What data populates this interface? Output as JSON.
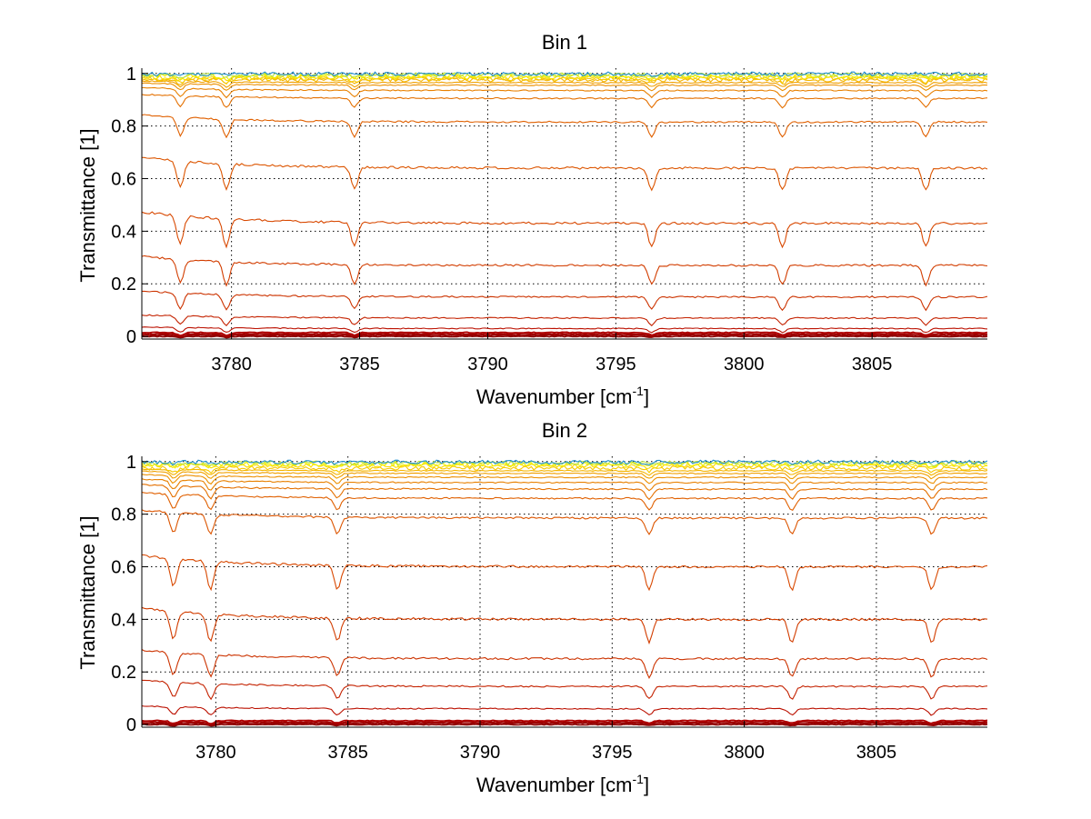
{
  "chart_data": [
    {
      "type": "line",
      "title": "Bin 1",
      "xlabel": "Wavenumber [cm",
      "xlabel_sup": "-1",
      "xlabel_end": "]",
      "ylabel": "Transmittance [1]",
      "xlim": [
        3776.5,
        3809.5
      ],
      "ylim": [
        -0.01,
        1.02
      ],
      "xticks": [
        3780,
        3785,
        3790,
        3795,
        3800,
        3805
      ],
      "yticks": [
        0,
        0.2,
        0.4,
        0.6,
        0.8,
        1
      ],
      "xtick_labels": [
        "3780",
        "3785",
        "3790",
        "3795",
        "3800",
        "3805"
      ],
      "ytick_labels": [
        "0",
        "0.2",
        "0.4",
        "0.6",
        "0.8",
        "1"
      ],
      "grid": true,
      "absorption_lines": [
        3778,
        3779.8,
        3784.8,
        3796.4,
        3801.5,
        3807.1
      ],
      "series_levels": [
        0.0,
        0.005,
        0.01,
        0.015,
        0.03,
        0.07,
        0.15,
        0.27,
        0.43,
        0.64,
        0.815,
        0.905,
        0.935,
        0.955,
        0.965,
        0.975,
        0.98,
        0.985,
        0.99,
        0.995,
        0.998
      ],
      "series_colors": [
        "#8b0000",
        "#990000",
        "#a30000",
        "#b00000",
        "#bb1000",
        "#c42200",
        "#cc3300",
        "#d23d00",
        "#d84800",
        "#dc5500",
        "#e06000",
        "#e47000",
        "#e88000",
        "#ec9000",
        "#f0a000",
        "#f4b400",
        "#f7c800",
        "#fadc00",
        "#f0f000",
        "#b8e040",
        "#2090d0"
      ]
    },
    {
      "type": "line",
      "title": "Bin 2",
      "xlabel": "Wavenumber [cm",
      "xlabel_sup": "-1",
      "xlabel_end": "]",
      "ylabel": "Transmittance [1]",
      "xlim": [
        3777.2,
        3809.2
      ],
      "ylim": [
        -0.01,
        1.02
      ],
      "xticks": [
        3780,
        3785,
        3790,
        3795,
        3800,
        3805
      ],
      "yticks": [
        0,
        0.2,
        0.4,
        0.6,
        0.8,
        1
      ],
      "xtick_labels": [
        "3780",
        "3785",
        "3790",
        "3795",
        "3800",
        "3805"
      ],
      "ytick_labels": [
        "0",
        "0.2",
        "0.4",
        "0.6",
        "0.8",
        "1"
      ],
      "grid": true,
      "absorption_lines": [
        3778.4,
        3779.8,
        3784.6,
        3796.4,
        3801.8,
        3807.1
      ],
      "series_levels": [
        0.0,
        0.005,
        0.01,
        0.015,
        0.06,
        0.145,
        0.25,
        0.4,
        0.6,
        0.785,
        0.86,
        0.895,
        0.92,
        0.94,
        0.955,
        0.965,
        0.975,
        0.985,
        0.99,
        0.995,
        0.998
      ],
      "series_colors": [
        "#8b0000",
        "#990000",
        "#a30000",
        "#b00000",
        "#bb1000",
        "#c42200",
        "#cc3300",
        "#d23d00",
        "#d84800",
        "#dc5500",
        "#e06000",
        "#e47000",
        "#e88000",
        "#ec9000",
        "#f0a000",
        "#f4b400",
        "#f7c800",
        "#fadc00",
        "#f0f000",
        "#b8e040",
        "#2090d0"
      ]
    }
  ]
}
